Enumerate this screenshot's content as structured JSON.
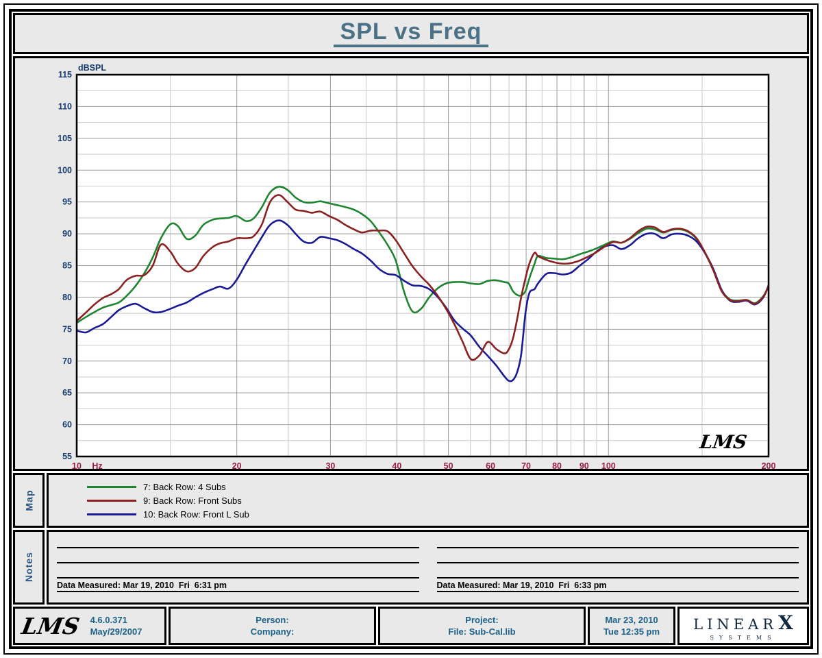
{
  "title": "SPL vs Freq",
  "colors": {
    "title": "#4b7187",
    "y_axis_text": "#153a6d",
    "x_axis_text": "#991b4a",
    "section_label": "#2a5580",
    "footer_text": "#1b6189",
    "brand": "#13293d",
    "panel_bg": "#e9e9e9",
    "plot_bg": "#ffffff"
  },
  "chart": {
    "y_axis_title": "dBSPL",
    "x_unit": "Hz",
    "watermark": "LMS"
  },
  "chart_data": {
    "type": "line",
    "x_scale": "log",
    "x_range": [
      10,
      200
    ],
    "y_range": [
      55,
      115
    ],
    "xlabel": "Hz",
    "ylabel": "dBSPL",
    "x_tick_labels": [
      10,
      20,
      30,
      40,
      50,
      60,
      70,
      80,
      90,
      100,
      200
    ],
    "y_tick_labels": [
      115,
      110,
      105,
      100,
      95,
      90,
      85,
      80,
      75,
      70,
      65,
      60,
      55
    ],
    "x_grid_major": [
      20,
      30,
      40,
      50,
      60,
      70,
      80,
      90,
      100,
      200
    ],
    "x_grid_minor": [
      15,
      25,
      35,
      45,
      55,
      65,
      75,
      85,
      95,
      150
    ],
    "y_grid_major": [
      60,
      65,
      70,
      75,
      80,
      85,
      90,
      95,
      100,
      105,
      110
    ],
    "y_grid_minor": [
      57.5,
      62.5,
      67.5,
      72.5,
      77.5,
      82.5,
      87.5,
      92.5,
      97.5,
      102.5,
      107.5,
      112.5
    ],
    "grid_major_color": "#9a9a9a",
    "grid_minor_color": "#c9c9c9",
    "frequencies": [
      10,
      10.4,
      10.8,
      11.2,
      11.6,
      12,
      12.4,
      12.9,
      13.4,
      13.9,
      14.4,
      15,
      15.5,
      16.1,
      16.7,
      17.3,
      18,
      18.6,
      19.3,
      20,
      20.8,
      21.5,
      22.3,
      23.1,
      24,
      24.9,
      25.8,
      26.7,
      27.7,
      28.7,
      29.8,
      30.9,
      32,
      33.2,
      34.4,
      35.7,
      37,
      38.4,
      39.8,
      41.3,
      42.8,
      44.4,
      46,
      47.7,
      49.5,
      51.3,
      53.2,
      55.1,
      57.2,
      59.3,
      61.5,
      63.7,
      64.9,
      66.1,
      67.3,
      68.5,
      69.8,
      71,
      72.6,
      73.7,
      76.4,
      79.2,
      82.1,
      85.1,
      88.3,
      91.5,
      94.9,
      98.4,
      102,
      105.8,
      109.7,
      113.7,
      117.9,
      122.2,
      126.7,
      131.4,
      136.2,
      141.2,
      146.4,
      151.8,
      157.4,
      163.2,
      169.2,
      175.4,
      181.9,
      188.6,
      195.5,
      200
    ],
    "series": [
      {
        "name": "7: Back Row: 4 Subs",
        "color": "#1f8530",
        "values": [
          76.0,
          76.9,
          77.7,
          78.4,
          78.8,
          79.2,
          80.2,
          81.8,
          83.8,
          86.3,
          89.3,
          91.5,
          91.2,
          89.2,
          89.7,
          91.4,
          92.2,
          92.4,
          92.5,
          92.8,
          92.0,
          92.4,
          94.2,
          96.5,
          97.4,
          96.9,
          95.7,
          95.0,
          94.9,
          95.1,
          94.8,
          94.5,
          94.2,
          93.8,
          93.1,
          92.0,
          90.3,
          88.3,
          85.8,
          80.8,
          77.8,
          78.2,
          80.0,
          81.4,
          82.2,
          82.4,
          82.4,
          82.2,
          82.1,
          82.6,
          82.7,
          82.4,
          82.2,
          81.0,
          80.4,
          80.3,
          81.0,
          83.0,
          85.3,
          86.5,
          86.2,
          86.1,
          86.0,
          86.3,
          86.8,
          87.2,
          87.7,
          88.3,
          88.8,
          88.6,
          89.2,
          90.1,
          90.8,
          90.7,
          90.2,
          90.6,
          90.7,
          90.3,
          89.2,
          87.0,
          84.3,
          81.1,
          79.7,
          79.5,
          79.6,
          79.1,
          80.2,
          81.8
        ]
      },
      {
        "name": "9: Back Row: Front Subs",
        "color": "#8b2121",
        "values": [
          76.3,
          77.6,
          78.9,
          79.9,
          80.5,
          81.3,
          82.7,
          83.4,
          83.5,
          85.0,
          88.3,
          87.2,
          85.3,
          84.1,
          84.6,
          86.5,
          87.9,
          88.5,
          88.8,
          89.3,
          89.3,
          89.6,
          91.5,
          95.0,
          96.1,
          95.0,
          93.8,
          93.6,
          93.3,
          93.5,
          92.8,
          92.2,
          91.4,
          90.7,
          90.2,
          90.5,
          90.5,
          90.4,
          89.0,
          86.9,
          84.9,
          83.3,
          82.0,
          80.3,
          78.2,
          75.8,
          73.0,
          70.3,
          70.9,
          73.0,
          71.9,
          71.2,
          71.8,
          73.5,
          76.5,
          80.0,
          83.0,
          85.3,
          87.0,
          86.5,
          85.9,
          85.5,
          85.3,
          85.4,
          85.8,
          86.4,
          87.1,
          88.0,
          88.7,
          88.6,
          89.3,
          90.4,
          91.1,
          91.0,
          90.3,
          90.7,
          90.8,
          90.4,
          89.3,
          87.1,
          84.3,
          81.0,
          79.6,
          79.4,
          79.6,
          79.0,
          80.1,
          81.8
        ]
      },
      {
        "name": "10: Back Row: Front L Sub",
        "color": "#1a1a96",
        "values": [
          74.8,
          74.5,
          75.2,
          75.8,
          76.9,
          78.0,
          78.6,
          79.0,
          78.3,
          77.7,
          77.7,
          78.2,
          78.7,
          79.2,
          80.0,
          80.7,
          81.3,
          81.7,
          81.4,
          82.8,
          85.3,
          87.3,
          89.5,
          91.4,
          92.1,
          91.4,
          90.0,
          88.8,
          88.6,
          89.5,
          89.3,
          89.0,
          88.4,
          87.6,
          86.9,
          85.8,
          84.5,
          83.7,
          83.5,
          82.6,
          81.9,
          81.8,
          81.3,
          80.1,
          78.4,
          76.4,
          75.1,
          74.0,
          72.2,
          70.8,
          69.3,
          67.6,
          66.9,
          67.0,
          68.2,
          71.0,
          77.5,
          80.7,
          81.3,
          82.2,
          83.7,
          83.8,
          83.6,
          83.9,
          85.0,
          86.0,
          87.2,
          88.0,
          88.2,
          87.6,
          88.2,
          89.3,
          90.0,
          90.0,
          89.3,
          89.9,
          90.0,
          89.7,
          88.8,
          87.0,
          84.5,
          81.2,
          79.5,
          79.3,
          79.5,
          78.9,
          80.0,
          81.9
        ]
      }
    ],
    "title": "SPL vs Freq",
    "legend_position": "below-map-section"
  },
  "map": {
    "label": "Map",
    "legend": [
      {
        "label": "7: Back Row: 4 Subs"
      },
      {
        "label": "9: Back Row: Front Subs"
      },
      {
        "label": "10: Back Row: Front L Sub"
      }
    ]
  },
  "notes": {
    "label": "Notes",
    "left_caption": "Data Measured: Mar 19, 2010  Fri  6:31 pm",
    "right_caption": "Data Measured: Mar 19, 2010  Fri  6:33 pm"
  },
  "footer": {
    "lms_logo": "LMS",
    "version": "4.6.0.371",
    "version_date": "May/29/2007",
    "person_label": "Person:",
    "company_label": "Company:",
    "project_label": "Project:",
    "file_label": "File: Sub-Cal.lib",
    "date_line1": "Mar 23, 2010",
    "date_line2": "Tue 12:35 pm",
    "brand_linear": "LINEAR",
    "brand_x": "X",
    "brand_systems": "SYSTEMS"
  }
}
